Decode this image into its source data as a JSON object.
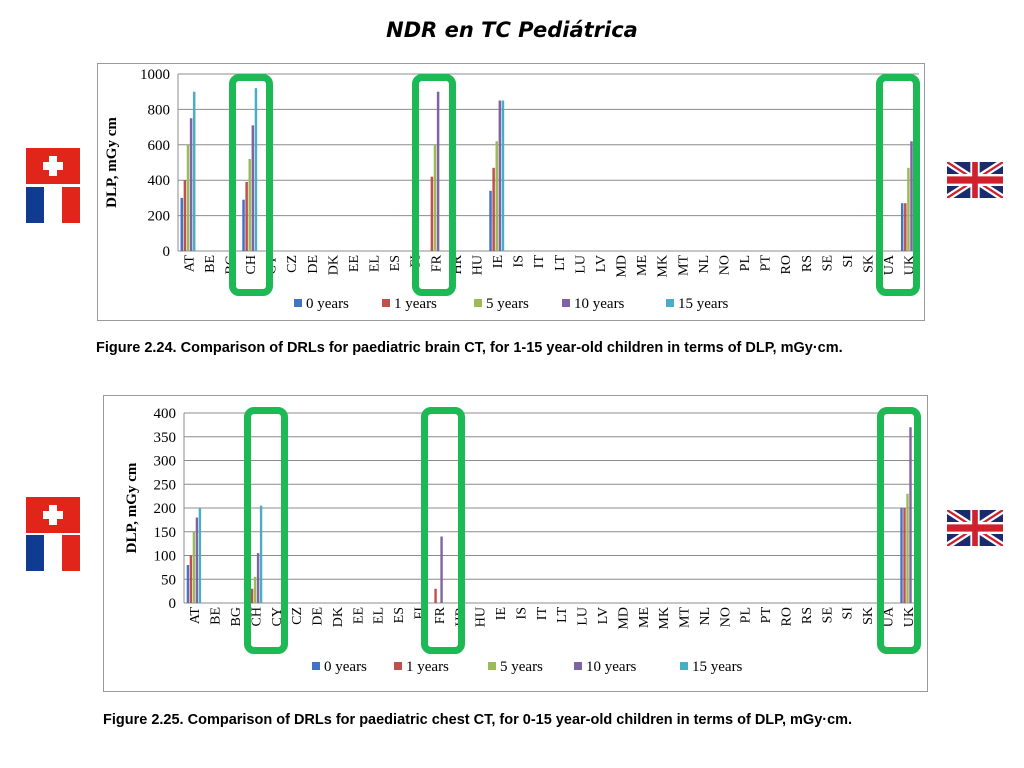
{
  "slide": {
    "title": "NDR en TC Pediátrica"
  },
  "colors": {
    "series": [
      "#4472c4",
      "#c0504d",
      "#9bbb59",
      "#8064a2",
      "#4bacc6"
    ],
    "highlight": "#1db954",
    "swiss_red": "#e1251b",
    "france_blue": "#0f3c91",
    "france_red": "#e1251b",
    "uk_blue": "#1a2a6c",
    "uk_red": "#d0202e"
  },
  "flags": {
    "left_top_1": "swiss-flag-icon",
    "left_bottom_1": "france-flag-icon",
    "right_1": "uk-flag-icon",
    "left_top_2": "swiss-flag-icon",
    "left_bottom_2": "france-flag-icon",
    "right_2": "uk-flag-icon"
  },
  "chart_data": [
    {
      "type": "bar",
      "caption": "Figure 2.24.   Comparison of DRLs for paediatric brain CT, for 1-15 year-old children in terms of DLP,  mGy·cm.",
      "ylabel": "DLP, mGy cm",
      "xlabel": "",
      "ylim": [
        0,
        1000
      ],
      "yticks": [
        0,
        200,
        400,
        600,
        800,
        1000
      ],
      "grid": true,
      "legend_position": "bottom",
      "categories": [
        "AT",
        "BE",
        "BG",
        "CH",
        "CY",
        "CZ",
        "DE",
        "DK",
        "EE",
        "EL",
        "ES",
        "FI",
        "FR",
        "HR",
        "HU",
        "IE",
        "IS",
        "IT",
        "LT",
        "LU",
        "LV",
        "MD",
        "ME",
        "MK",
        "MT",
        "NL",
        "NO",
        "PL",
        "PT",
        "RO",
        "RS",
        "SE",
        "SI",
        "SK",
        "UA",
        "UK"
      ],
      "highlighted": [
        "CH",
        "FR",
        "UK"
      ],
      "series": [
        {
          "name": "0 years",
          "values": [
            300,
            null,
            null,
            290,
            null,
            null,
            null,
            null,
            null,
            null,
            null,
            null,
            null,
            null,
            null,
            340,
            null,
            null,
            null,
            null,
            null,
            null,
            null,
            null,
            null,
            null,
            null,
            null,
            null,
            null,
            null,
            null,
            null,
            null,
            null,
            270
          ]
        },
        {
          "name": "1 years",
          "values": [
            400,
            null,
            null,
            390,
            null,
            null,
            null,
            null,
            null,
            null,
            null,
            null,
            420,
            null,
            null,
            470,
            null,
            null,
            null,
            null,
            null,
            null,
            null,
            null,
            null,
            null,
            null,
            null,
            null,
            null,
            null,
            null,
            null,
            null,
            null,
            270
          ]
        },
        {
          "name": "5 years",
          "values": [
            600,
            null,
            null,
            520,
            null,
            null,
            null,
            null,
            null,
            null,
            null,
            null,
            600,
            null,
            null,
            620,
            null,
            null,
            null,
            null,
            null,
            null,
            null,
            null,
            null,
            null,
            null,
            null,
            null,
            null,
            null,
            null,
            null,
            null,
            null,
            470
          ]
        },
        {
          "name": "10 years",
          "values": [
            750,
            null,
            null,
            710,
            null,
            null,
            null,
            null,
            null,
            null,
            null,
            null,
            900,
            null,
            null,
            850,
            null,
            null,
            null,
            null,
            null,
            null,
            null,
            null,
            null,
            null,
            null,
            null,
            null,
            null,
            null,
            null,
            null,
            null,
            null,
            620
          ]
        },
        {
          "name": "15 years",
          "values": [
            900,
            null,
            null,
            920,
            null,
            null,
            null,
            null,
            null,
            null,
            null,
            null,
            null,
            null,
            null,
            850,
            null,
            null,
            null,
            null,
            null,
            null,
            null,
            null,
            null,
            null,
            null,
            null,
            null,
            null,
            null,
            null,
            null,
            null,
            null,
            null
          ]
        }
      ]
    },
    {
      "type": "bar",
      "caption": "Figure 2.25.   Comparison of DRLs for paediatric chest CT, for 0-15 year-old children in terms of DLP,  mGy·cm.",
      "ylabel": "DLP, mGy cm",
      "xlabel": "",
      "ylim": [
        0,
        400
      ],
      "yticks": [
        0,
        50,
        100,
        150,
        200,
        250,
        300,
        350,
        400
      ],
      "grid": true,
      "legend_position": "bottom",
      "categories": [
        "AT",
        "BE",
        "BG",
        "CH",
        "CY",
        "CZ",
        "DE",
        "DK",
        "EE",
        "EL",
        "ES",
        "FI",
        "FR",
        "HR",
        "HU",
        "IE",
        "IS",
        "IT",
        "LT",
        "LU",
        "LV",
        "MD",
        "ME",
        "MK",
        "MT",
        "NL",
        "NO",
        "PL",
        "PT",
        "RO",
        "RS",
        "SE",
        "SI",
        "SK",
        "UA",
        "UK"
      ],
      "highlighted": [
        "CH",
        "FR",
        "UK"
      ],
      "series": [
        {
          "name": "0 years",
          "values": [
            80,
            null,
            null,
            30,
            null,
            null,
            null,
            null,
            null,
            null,
            null,
            null,
            null,
            null,
            null,
            null,
            null,
            null,
            null,
            null,
            null,
            null,
            null,
            null,
            null,
            null,
            null,
            null,
            null,
            null,
            null,
            null,
            null,
            null,
            null,
            200
          ]
        },
        {
          "name": "1 years",
          "values": [
            100,
            null,
            null,
            30,
            null,
            null,
            null,
            null,
            null,
            null,
            null,
            null,
            30,
            null,
            null,
            null,
            null,
            null,
            null,
            null,
            null,
            null,
            null,
            null,
            null,
            null,
            null,
            null,
            null,
            null,
            null,
            null,
            null,
            null,
            null,
            200
          ]
        },
        {
          "name": "5 years",
          "values": [
            150,
            null,
            null,
            55,
            null,
            null,
            null,
            null,
            null,
            null,
            null,
            null,
            null,
            null,
            null,
            null,
            null,
            null,
            null,
            null,
            null,
            null,
            null,
            null,
            null,
            null,
            null,
            null,
            null,
            null,
            null,
            null,
            null,
            null,
            null,
            230
          ]
        },
        {
          "name": "10 years",
          "values": [
            180,
            null,
            null,
            105,
            null,
            null,
            null,
            null,
            null,
            null,
            null,
            null,
            140,
            null,
            null,
            null,
            null,
            null,
            null,
            null,
            null,
            null,
            null,
            null,
            null,
            null,
            null,
            null,
            null,
            null,
            null,
            null,
            null,
            null,
            null,
            370
          ]
        },
        {
          "name": "15 years",
          "values": [
            200,
            null,
            null,
            205,
            null,
            null,
            null,
            null,
            null,
            null,
            null,
            null,
            null,
            null,
            null,
            null,
            null,
            null,
            null,
            null,
            null,
            null,
            null,
            null,
            null,
            null,
            null,
            null,
            null,
            null,
            null,
            null,
            null,
            null,
            null,
            null
          ]
        }
      ]
    }
  ]
}
